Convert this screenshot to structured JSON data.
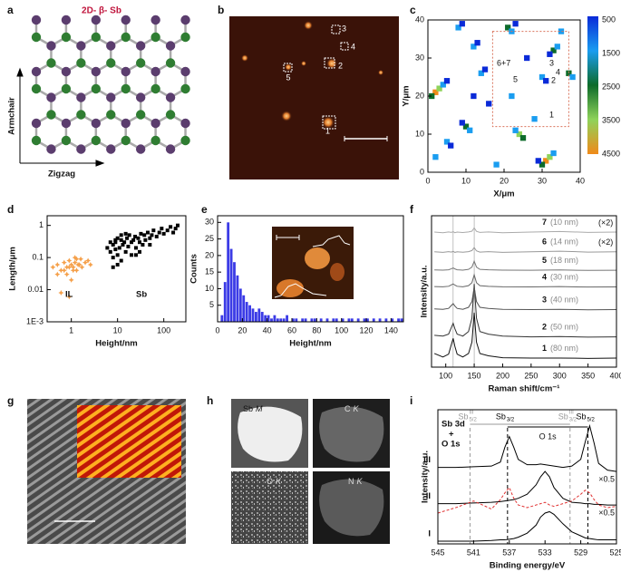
{
  "panel_labels": [
    "a",
    "b",
    "c",
    "d",
    "e",
    "f",
    "g",
    "h",
    "i"
  ],
  "panel_a": {
    "title": "2D- β- Sb",
    "y_label": "Armchair",
    "x_label": "Zigzag"
  },
  "panel_b": {
    "markers": [
      "1",
      "2",
      "3",
      "4",
      "5"
    ]
  },
  "panel_h": {
    "maps": [
      {
        "element": "Sb",
        "line": "M"
      },
      {
        "element": "C",
        "line": "K"
      },
      {
        "element": "O",
        "line": "K"
      },
      {
        "element": "N",
        "line": "K"
      }
    ]
  },
  "chart_data": [
    {
      "type": "heatmap-scatter",
      "x_label": "X/μm",
      "y_label": "Y/μm",
      "xlim": [
        0,
        40
      ],
      "ylim": [
        0,
        40
      ],
      "xticks": [
        0,
        10,
        20,
        30,
        40
      ],
      "yticks": [
        0,
        10,
        20,
        30,
        40
      ],
      "x": [
        2,
        3,
        1,
        4,
        5,
        10,
        11,
        9,
        12,
        13,
        8,
        9,
        21,
        22,
        23,
        31,
        32,
        30,
        33,
        29,
        33,
        34,
        32,
        24,
        25,
        23,
        30,
        31,
        14,
        15,
        37,
        38,
        22,
        5,
        6,
        2,
        18,
        26,
        35,
        16,
        28,
        12
      ],
      "y": [
        21,
        22,
        20,
        23,
        24,
        12,
        11,
        13,
        33,
        34,
        38,
        39,
        38,
        37,
        39,
        3,
        4,
        2,
        5,
        3,
        32,
        33,
        31,
        10,
        9,
        11,
        25,
        24,
        26,
        27,
        26,
        25,
        20,
        8,
        7,
        4,
        2,
        30,
        37,
        18,
        14,
        20
      ],
      "values": [
        4500,
        3500,
        2500,
        1500,
        500,
        2500,
        1500,
        500,
        1500,
        500,
        1500,
        500,
        2500,
        1500,
        500,
        4500,
        3500,
        2500,
        1500,
        500,
        2500,
        1500,
        500,
        3500,
        2500,
        1500,
        1500,
        500,
        1500,
        500,
        2500,
        1500,
        1500,
        1500,
        500,
        1500,
        1500,
        500,
        1500,
        500,
        1500,
        500
      ],
      "clim": [
        500,
        4500
      ],
      "cticks": [
        500,
        1500,
        2500,
        3500,
        4500
      ],
      "colormap": [
        "#0a2ad8",
        "#1a9df0",
        "#0d6b2a",
        "#8fd35a",
        "#f08a1a"
      ],
      "annotations": [
        "6+7",
        "5",
        "3",
        "4",
        "2",
        "1"
      ]
    },
    {
      "type": "scatter",
      "log_x": true,
      "log_y": true,
      "x_label": "Height/nm",
      "y_label": "Length/μm",
      "xlim": [
        0.3,
        300
      ],
      "ylim": [
        0.001,
        2
      ],
      "xticks": [
        1,
        10,
        100
      ],
      "yticks": [
        {
          "value": 0.001,
          "label": "1E-3"
        },
        0.01,
        0.1,
        1
      ],
      "series": [
        {
          "name": "IL",
          "color": "#f5a04a",
          "marker": "star",
          "x": [
            0.4,
            0.5,
            0.6,
            0.7,
            0.8,
            0.9,
            1.0,
            1.1,
            1.2,
            1.3,
            1.5,
            1.7,
            2.0,
            2.3,
            2.6,
            0.5,
            0.7,
            0.9,
            1.1,
            1.4,
            0.6,
            0.8,
            1.0,
            1.2,
            1.6,
            0.9,
            1.3
          ],
          "y": [
            0.05,
            0.06,
            0.04,
            0.07,
            0.05,
            0.08,
            0.06,
            0.05,
            0.07,
            0.09,
            0.06,
            0.05,
            0.07,
            0.08,
            0.06,
            0.03,
            0.04,
            0.05,
            0.04,
            0.06,
            0.008,
            0.03,
            0.02,
            0.1,
            0.09,
            0.006,
            0.04
          ]
        },
        {
          "name": "Sb",
          "color": "#000000",
          "marker": "square",
          "x": [
            6,
            7,
            7,
            8,
            8,
            9,
            9,
            10,
            10,
            11,
            12,
            12,
            13,
            14,
            15,
            16,
            17,
            18,
            20,
            20,
            22,
            24,
            25,
            28,
            30,
            32,
            35,
            38,
            40,
            45,
            50,
            55,
            60,
            70,
            80,
            90,
            100,
            120,
            140,
            160,
            180,
            200,
            8,
            10,
            12,
            15,
            25,
            30,
            50,
            9
          ],
          "y": [
            0.2,
            0.3,
            0.15,
            0.25,
            0.1,
            0.3,
            0.18,
            0.4,
            0.12,
            0.2,
            0.35,
            0.08,
            0.25,
            0.3,
            0.15,
            0.4,
            0.22,
            0.5,
            0.3,
            0.12,
            0.35,
            0.45,
            0.2,
            0.4,
            0.3,
            0.55,
            0.25,
            0.5,
            0.35,
            0.6,
            0.4,
            0.5,
            0.7,
            0.45,
            0.6,
            0.8,
            0.55,
            0.7,
            0.9,
            0.6,
            0.8,
            1.0,
            0.05,
            0.06,
            0.5,
            0.55,
            0.12,
            0.15,
            0.25,
            0.35
          ]
        }
      ]
    },
    {
      "type": "histogram",
      "x_label": "Height/nm",
      "y_label": "Counts",
      "color": "#3b3be6",
      "bins": [
        0,
        2.5,
        5,
        7.5,
        10,
        12.5,
        15,
        17.5,
        20,
        22.5,
        25,
        27.5,
        30,
        32.5,
        35,
        37.5,
        40,
        42.5,
        45,
        47.5,
        50,
        52.5,
        55,
        57.5,
        60,
        62.5,
        65,
        67.5,
        70,
        72.5,
        75,
        77.5,
        80,
        82.5,
        85,
        87.5,
        90,
        92.5,
        95,
        97.5,
        100,
        102.5,
        105,
        107.5,
        110,
        112.5,
        115,
        117.5,
        120,
        122.5,
        125,
        127.5,
        130,
        132.5,
        135,
        137.5,
        140,
        142.5,
        145,
        147.5,
        150
      ],
      "counts": [
        0,
        2,
        12,
        30,
        22,
        18,
        14,
        10,
        8,
        6,
        5,
        4,
        3,
        4,
        3,
        2,
        2,
        1,
        2,
        1,
        1,
        1,
        2,
        0,
        1,
        1,
        0,
        1,
        1,
        0,
        1,
        1,
        0,
        1,
        0,
        1,
        0,
        1,
        1,
        0,
        1,
        0,
        1,
        1,
        0,
        1,
        0,
        1,
        1,
        0,
        1,
        0,
        1,
        0,
        1,
        0,
        1,
        0,
        1,
        1
      ],
      "xlim": [
        0,
        150
      ],
      "ylim": [
        0,
        32
      ],
      "xticks": [
        0,
        20,
        40,
        60,
        80,
        100,
        120,
        140
      ],
      "yticks": [
        5,
        10,
        15,
        20,
        25,
        30
      ]
    },
    {
      "type": "line",
      "x_label": "Raman shift/cm⁻¹",
      "y_label": "Intensity/a.u.",
      "xlim": [
        75,
        400
      ],
      "ylim": [
        0,
        10
      ],
      "xticks": [
        100,
        150,
        200,
        250,
        300,
        350,
        400
      ],
      "reference_lines": [
        113,
        150
      ],
      "x": [
        80,
        95,
        105,
        110,
        113,
        116,
        120,
        130,
        140,
        146,
        150,
        154,
        160,
        175,
        200,
        250,
        300,
        350,
        400
      ],
      "series": [
        {
          "name": "1",
          "label": "(80 nm)",
          "color": "#111111",
          "values": [
            0.9,
            0.67,
            0.86,
            1.51,
            1.9,
            1.38,
            0.86,
            0.67,
            0.9,
            1.65,
            3.6,
            1.65,
            0.9,
            0.75,
            0.62,
            0.6,
            0.6,
            0.58,
            0.6
          ]
        },
        {
          "name": "2",
          "label": "(50 nm)",
          "color": "#333333",
          "values": [
            2.1,
            2.05,
            2.18,
            2.63,
            2.9,
            2.54,
            2.18,
            2.05,
            2.35,
            3.23,
            5.5,
            3.23,
            2.35,
            2.18,
            2.05,
            2.0,
            2.02,
            1.98,
            2.0
          ]
        },
        {
          "name": "3",
          "label": "(40 nm)",
          "color": "#555555",
          "values": [
            3.85,
            3.82,
            3.88,
            4.08,
            4.2,
            4.04,
            3.88,
            3.82,
            3.95,
            4.33,
            5.3,
            4.33,
            3.95,
            3.88,
            3.82,
            3.8,
            3.82,
            3.79,
            3.8
          ]
        },
        {
          "name": "4",
          "label": "(30 nm)",
          "color": "#666666",
          "values": [
            5.32,
            5.31,
            5.34,
            5.44,
            5.5,
            5.42,
            5.34,
            5.31,
            5.38,
            5.58,
            6.1,
            5.58,
            5.38,
            5.34,
            5.31,
            5.3,
            5.32,
            5.29,
            5.3
          ]
        },
        {
          "name": "5",
          "label": "(18 nm)",
          "color": "#777777",
          "values": [
            6.42,
            6.41,
            6.43,
            6.5,
            6.55,
            6.49,
            6.43,
            6.41,
            6.46,
            6.61,
            7.0,
            6.61,
            6.46,
            6.43,
            6.41,
            6.4,
            6.42,
            6.39,
            6.4
          ]
        },
        {
          "name": "6",
          "label": "(14 nm)",
          "factor": "(×2)",
          "color": "#999999",
          "values": [
            7.62,
            7.58,
            7.63,
            7.6,
            7.65,
            7.58,
            7.62,
            7.59,
            7.63,
            7.7,
            7.9,
            7.68,
            7.6,
            7.63,
            7.58,
            7.62,
            7.66,
            7.6,
            7.62
          ]
        },
        {
          "name": "7",
          "label": "(10 nm)",
          "factor": "(×2)",
          "color": "#aaaaaa",
          "values": [
            8.92,
            8.88,
            8.93,
            8.9,
            8.95,
            8.88,
            8.92,
            8.89,
            8.93,
            8.98,
            9.2,
            8.97,
            8.9,
            8.93,
            8.88,
            8.92,
            8.96,
            8.9,
            8.92
          ]
        }
      ]
    },
    {
      "type": "line",
      "x_label": "Binding energy/eV",
      "y_label": "Intensity/a.u.",
      "xlim": [
        545,
        525
      ],
      "ylim": [
        0,
        10
      ],
      "xticks": [
        545,
        541,
        537,
        533,
        529,
        525
      ],
      "x": [
        545,
        543,
        541,
        539,
        538,
        537.5,
        537,
        536.5,
        536,
        535,
        534,
        533.5,
        533,
        532.5,
        532,
        531,
        530,
        529,
        528.5,
        528,
        527.5,
        527,
        526,
        525
      ],
      "series": [
        {
          "name": "III",
          "factor": "×0.5",
          "color": "#000000",
          "values": [
            5.7,
            5.7,
            5.75,
            5.8,
            6.1,
            7.2,
            8.0,
            7.2,
            6.3,
            5.9,
            5.9,
            5.95,
            5.9,
            5.85,
            5.8,
            5.7,
            5.8,
            6.3,
            7.6,
            8.8,
            7.5,
            6.0,
            5.5,
            5.4
          ]
        },
        {
          "name": "II",
          "factor": "×0.5",
          "color": "#000000",
          "values": [
            3.0,
            3.0,
            3.05,
            3.1,
            3.15,
            3.2,
            3.25,
            3.3,
            3.4,
            3.7,
            4.4,
            5.0,
            5.4,
            5.0,
            4.2,
            3.4,
            3.1,
            3.05,
            3.0,
            3.0,
            2.95,
            2.95,
            2.9,
            2.9
          ]
        },
        {
          "color": "#e03030",
          "dash": true,
          "values": [
            2.3,
            2.7,
            3.2,
            2.6,
            3.3,
            3.8,
            4.2,
            3.4,
            2.9,
            2.7,
            2.9,
            3.0,
            3.1,
            2.9,
            2.8,
            3.0,
            3.2,
            3.7,
            4.0,
            3.8,
            3.3,
            2.9,
            2.7,
            2.8
          ]
        },
        {
          "name": "I",
          "color": "#000000",
          "values": [
            0.2,
            0.2,
            0.2,
            0.25,
            0.3,
            0.3,
            0.35,
            0.4,
            0.5,
            0.8,
            1.4,
            2.0,
            2.3,
            2.4,
            2.2,
            1.5,
            0.9,
            0.6,
            0.45,
            0.4,
            0.35,
            0.3,
            0.3,
            0.3
          ]
        }
      ],
      "peaks": [
        {
          "value": 541.4,
          "name": "Sb",
          "sup": "III",
          "sub": "5/2",
          "color": "#999999"
        },
        {
          "value": 537.2,
          "name": "Sb",
          "sub": "3/2",
          "color": "#000000"
        },
        {
          "value": 530.2,
          "name": "Sb",
          "sup": "III",
          "sub": "3/2",
          "color": "#999999"
        },
        {
          "value": 528.2,
          "name": "Sb",
          "sub": "5/2",
          "color": "#000000"
        }
      ],
      "o_label": "O 1s",
      "corner_label": [
        "Sb 3d",
        "+",
        "O 1s"
      ]
    }
  ]
}
